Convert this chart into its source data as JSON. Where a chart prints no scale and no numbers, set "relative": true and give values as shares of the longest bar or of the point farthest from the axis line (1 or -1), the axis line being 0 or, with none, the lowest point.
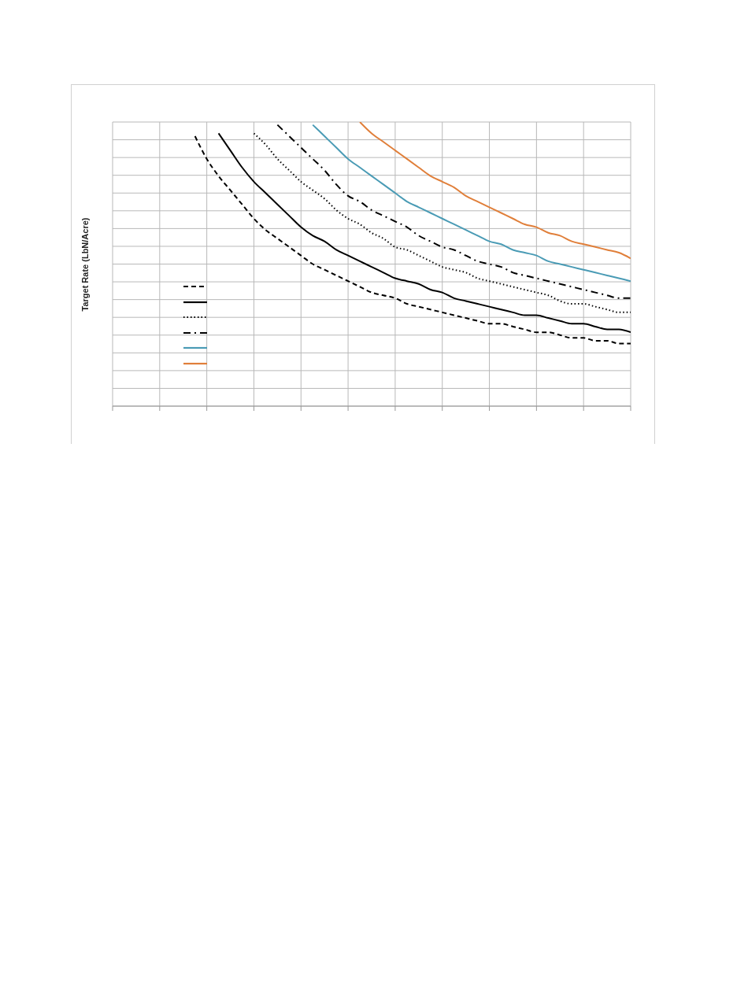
{
  "chart_data": {
    "type": "line",
    "ylabel": "Target Rate (LbN/Acre)",
    "relative": true,
    "grid": true,
    "marker": "none",
    "categories": [
      null,
      null,
      null,
      null,
      null,
      null,
      null,
      null,
      null,
      null,
      null,
      null,
      null,
      null,
      null,
      null,
      null,
      null,
      null,
      null,
      null,
      null,
      null,
      null,
      null,
      null,
      null,
      null,
      null,
      null,
      null,
      null,
      null,
      null,
      null,
      null,
      null,
      null,
      null,
      null,
      null,
      null,
      null,
      null,
      null
    ],
    "series": [
      {
        "color": "#000000",
        "line_style": "dashed",
        "values": [
          null,
          null,
          null,
          null,
          null,
          null,
          null,
          0.95,
          0.87,
          0.81,
          0.76,
          0.71,
          0.66,
          0.62,
          0.59,
          0.56,
          0.53,
          0.5,
          0.48,
          0.46,
          0.44,
          0.42,
          0.4,
          0.39,
          0.38,
          0.36,
          0.35,
          0.34,
          0.33,
          0.32,
          0.31,
          0.3,
          0.29,
          0.29,
          0.28,
          0.27,
          0.26,
          0.26,
          0.25,
          0.24,
          0.24,
          0.23,
          0.23,
          0.22,
          0.22
        ]
      },
      {
        "color": "#000000",
        "line_style": "solid",
        "values": [
          null,
          null,
          null,
          null,
          null,
          null,
          null,
          null,
          null,
          0.96,
          0.9,
          0.84,
          0.79,
          0.75,
          0.71,
          0.67,
          0.63,
          0.6,
          0.58,
          0.55,
          0.53,
          0.51,
          0.49,
          0.47,
          0.45,
          0.44,
          0.43,
          0.41,
          0.4,
          0.38,
          0.37,
          0.36,
          0.35,
          0.34,
          0.33,
          0.32,
          0.32,
          0.31,
          0.3,
          0.29,
          0.29,
          0.28,
          0.27,
          0.27,
          0.26
        ]
      },
      {
        "color": "#000000",
        "line_style": "dotted",
        "values": [
          null,
          null,
          null,
          null,
          null,
          null,
          null,
          null,
          null,
          null,
          null,
          null,
          0.96,
          0.92,
          0.87,
          0.83,
          0.79,
          0.76,
          0.73,
          0.69,
          0.66,
          0.64,
          0.61,
          0.59,
          0.56,
          0.55,
          0.53,
          0.51,
          0.49,
          0.48,
          0.47,
          0.45,
          0.44,
          0.43,
          0.42,
          0.41,
          0.4,
          0.39,
          0.37,
          0.36,
          0.36,
          0.35,
          0.34,
          0.33,
          0.33
        ]
      },
      {
        "color": "#000000",
        "line_style": "dashdot",
        "values": [
          null,
          null,
          null,
          null,
          null,
          null,
          null,
          null,
          null,
          null,
          null,
          null,
          null,
          null,
          0.99,
          0.95,
          0.91,
          0.87,
          0.83,
          0.78,
          0.74,
          0.72,
          0.69,
          0.67,
          0.65,
          0.63,
          0.6,
          0.58,
          0.56,
          0.55,
          0.53,
          0.51,
          0.5,
          0.49,
          0.47,
          0.46,
          0.45,
          0.44,
          0.43,
          0.42,
          0.41,
          0.4,
          0.39,
          0.38,
          0.38
        ]
      },
      {
        "color": "#4a9bb5",
        "line_style": "solid",
        "values": [
          null,
          null,
          null,
          null,
          null,
          null,
          null,
          null,
          null,
          null,
          null,
          null,
          null,
          null,
          null,
          null,
          null,
          0.99,
          0.95,
          0.91,
          0.87,
          0.84,
          0.81,
          0.78,
          0.75,
          0.72,
          0.7,
          0.68,
          0.66,
          0.64,
          0.62,
          0.6,
          0.58,
          0.57,
          0.55,
          0.54,
          0.53,
          0.51,
          0.5,
          0.49,
          0.48,
          0.47,
          0.46,
          0.45,
          0.44
        ]
      },
      {
        "color": "#e07f3a",
        "line_style": "solid",
        "values": [
          null,
          null,
          null,
          null,
          null,
          null,
          null,
          null,
          null,
          null,
          null,
          null,
          null,
          null,
          null,
          null,
          null,
          null,
          null,
          null,
          null,
          1.0,
          0.96,
          0.93,
          0.9,
          0.87,
          0.84,
          0.81,
          0.79,
          0.77,
          0.74,
          0.72,
          0.7,
          0.68,
          0.66,
          0.64,
          0.63,
          0.61,
          0.6,
          0.58,
          0.57,
          0.56,
          0.55,
          0.54,
          0.52
        ]
      }
    ]
  }
}
